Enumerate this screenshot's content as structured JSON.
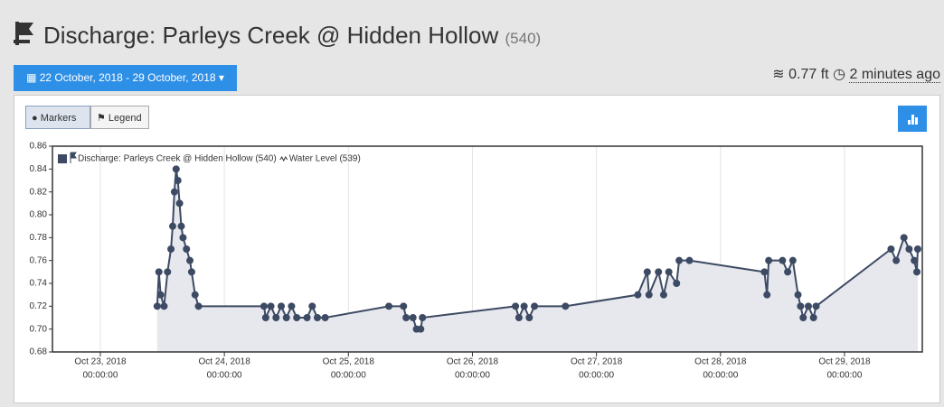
{
  "header": {
    "title": "Discharge: Parleys Creek @ Hidden Hollow",
    "count": "(540)",
    "date_range": "22 October, 2018 - 29 October, 2018",
    "level": "0.77 ft",
    "updated": "2 minutes ago"
  },
  "toolbar": {
    "markers": "Markers",
    "legend": "Legend"
  },
  "chart_data": {
    "type": "line",
    "legend": [
      "Discharge: Parleys Creek @ Hidden Hollow (540)",
      "Water Level (539)"
    ],
    "legend_position": "upper left",
    "grid": "x",
    "xlim": [
      "2018-10-22T14:44",
      "2018-10-29T15:03"
    ],
    "xticks": [
      {
        "value": "2018-10-23T00:00",
        "label": [
          "Oct 23, 2018",
          "00:00:00"
        ]
      },
      {
        "value": "2018-10-24T00:00",
        "label": [
          "Oct 24, 2018",
          "00:00:00"
        ]
      },
      {
        "value": "2018-10-25T00:00",
        "label": [
          "Oct 25, 2018",
          "00:00:00"
        ]
      },
      {
        "value": "2018-10-26T00:00",
        "label": [
          "Oct 26, 2018",
          "00:00:00"
        ]
      },
      {
        "value": "2018-10-27T00:00",
        "label": [
          "Oct 27, 2018",
          "00:00:00"
        ]
      },
      {
        "value": "2018-10-28T00:00",
        "label": [
          "Oct 28, 2018",
          "00:00:00"
        ]
      },
      {
        "value": "2018-10-29T00:00",
        "label": [
          "Oct 29, 2018",
          "00:00:00"
        ]
      }
    ],
    "ylim": [
      0.68,
      0.86
    ],
    "yticks": [
      0.68,
      {
        "value": 0.7,
        "label": "0.70"
      },
      0.72,
      0.74,
      0.76,
      0.78,
      {
        "value": 0.8,
        "label": "0.80"
      },
      0.82,
      0.84,
      0.86
    ],
    "series": [
      {
        "name": "Discharge: Parleys Creek @ Hidden Hollow",
        "color": "#3d4a63",
        "fill": "#e6e8ee",
        "x": [
          "2018-10-23T11:00",
          "2018-10-23T11:20",
          "2018-10-23T11:40",
          "2018-10-23T12:20",
          "2018-10-23T13:00",
          "2018-10-23T13:40",
          "2018-10-23T14:00",
          "2018-10-23T14:20",
          "2018-10-23T14:40",
          "2018-10-23T15:00",
          "2018-10-23T15:20",
          "2018-10-23T15:40",
          "2018-10-23T16:00",
          "2018-10-23T16:40",
          "2018-10-23T17:20",
          "2018-10-23T17:40",
          "2018-10-23T18:20",
          "2018-10-23T19:00",
          "2018-10-24T07:40",
          "2018-10-24T08:00",
          "2018-10-24T09:00",
          "2018-10-24T10:00",
          "2018-10-24T11:00",
          "2018-10-24T12:00",
          "2018-10-24T13:00",
          "2018-10-24T14:00",
          "2018-10-24T16:00",
          "2018-10-24T17:00",
          "2018-10-24T18:00",
          "2018-10-24T19:30",
          "2018-10-25T07:50",
          "2018-10-25T10:40",
          "2018-10-25T11:10",
          "2018-10-25T12:30",
          "2018-10-25T13:10",
          "2018-10-25T14:00",
          "2018-10-25T14:20",
          "2018-10-26T08:20",
          "2018-10-26T09:00",
          "2018-10-26T10:00",
          "2018-10-26T11:00",
          "2018-10-26T12:00",
          "2018-10-26T18:00",
          "2018-10-27T08:00",
          "2018-10-27T09:50",
          "2018-10-27T10:10",
          "2018-10-27T12:00",
          "2018-10-27T13:00",
          "2018-10-27T14:00",
          "2018-10-27T15:30",
          "2018-10-27T16:00",
          "2018-10-27T18:00",
          "2018-10-28T08:30",
          "2018-10-28T09:00",
          "2018-10-28T09:20",
          "2018-10-28T12:00",
          "2018-10-28T13:00",
          "2018-10-28T14:00",
          "2018-10-28T15:00",
          "2018-10-28T15:30",
          "2018-10-28T16:00",
          "2018-10-28T17:00",
          "2018-10-28T18:00",
          "2018-10-28T18:30",
          "2018-10-29T09:00",
          "2018-10-29T10:00",
          "2018-10-29T11:30",
          "2018-10-29T12:30",
          "2018-10-29T13:30",
          "2018-10-29T14:00",
          "2018-10-29T14:10"
        ],
        "values": [
          0.72,
          0.75,
          0.73,
          0.72,
          0.75,
          0.77,
          0.79,
          0.82,
          0.84,
          0.83,
          0.81,
          0.79,
          0.78,
          0.77,
          0.76,
          0.75,
          0.73,
          0.72,
          0.72,
          0.71,
          0.72,
          0.71,
          0.72,
          0.71,
          0.72,
          0.71,
          0.71,
          0.72,
          0.71,
          0.71,
          0.72,
          0.72,
          0.71,
          0.71,
          0.7,
          0.7,
          0.71,
          0.72,
          0.71,
          0.72,
          0.71,
          0.72,
          0.72,
          0.73,
          0.75,
          0.73,
          0.75,
          0.73,
          0.75,
          0.74,
          0.76,
          0.76,
          0.75,
          0.73,
          0.76,
          0.76,
          0.75,
          0.76,
          0.73,
          0.72,
          0.71,
          0.72,
          0.71,
          0.72,
          0.77,
          0.76,
          0.78,
          0.77,
          0.76,
          0.75,
          0.77
        ]
      }
    ]
  }
}
